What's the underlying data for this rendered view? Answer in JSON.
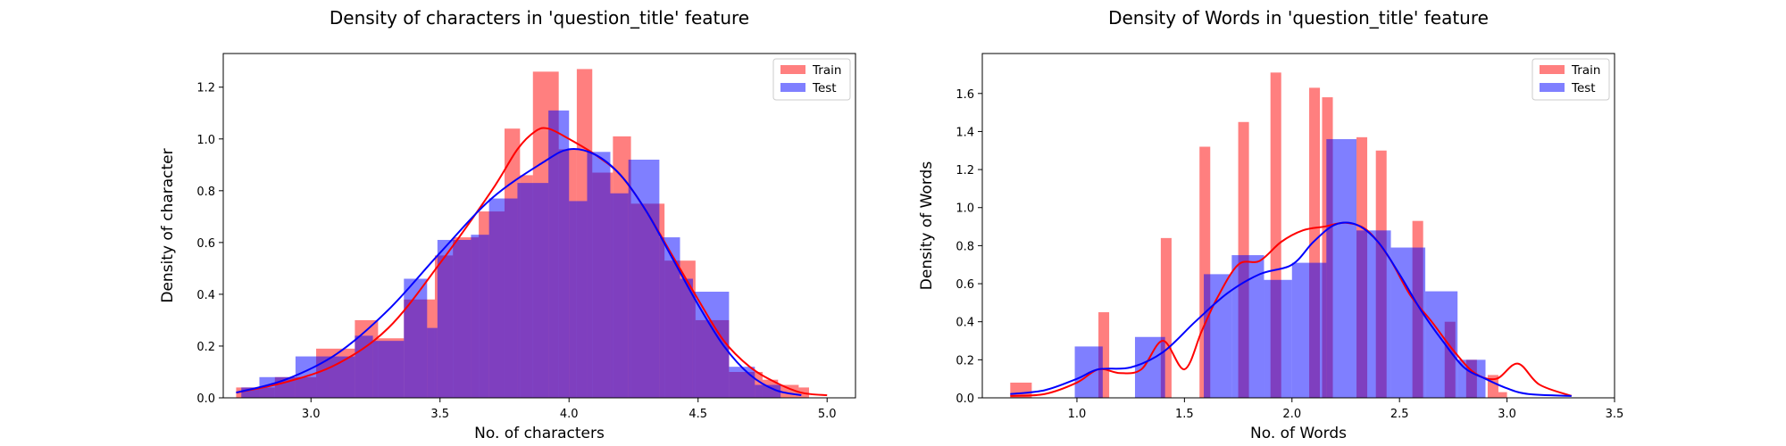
{
  "chart_data": [
    {
      "type": "histogram",
      "title": "Density of characters in 'question_title' feature",
      "xlabel": "No. of characters",
      "ylabel": "Density of character",
      "xlim": [
        2.66,
        5.11
      ],
      "ylim": [
        0,
        1.33
      ],
      "xticks": [
        3.0,
        3.5,
        4.0,
        4.5,
        5.0
      ],
      "xtick_labels": [
        "3.0",
        "3.5",
        "4.0",
        "4.5",
        "5.0"
      ],
      "yticks": [
        0.0,
        0.2,
        0.4,
        0.6,
        0.8,
        1.0,
        1.2
      ],
      "ytick_labels": [
        "0.0",
        "0.2",
        "0.4",
        "0.6",
        "0.8",
        "1.0",
        "1.2"
      ],
      "legend": {
        "position": "top-right",
        "entries": [
          "Train",
          "Test"
        ]
      },
      "grid": false,
      "series": [
        {
          "name": "Train",
          "color": "#ff0000",
          "bins": [
            [
              2.71,
              2.86,
              0.04
            ],
            [
              2.86,
              3.02,
              0.08
            ],
            [
              3.02,
              3.17,
              0.19
            ],
            [
              3.17,
              3.26,
              0.3
            ],
            [
              3.26,
              3.36,
              0.23
            ],
            [
              3.36,
              3.48,
              0.38
            ],
            [
              3.48,
              3.55,
              0.55
            ],
            [
              3.55,
              3.65,
              0.62
            ],
            [
              3.65,
              3.75,
              0.72
            ],
            [
              3.75,
              3.81,
              1.04
            ],
            [
              3.81,
              3.86,
              0.86
            ],
            [
              3.86,
              3.96,
              1.26
            ],
            [
              3.96,
              4.03,
              0.96
            ],
            [
              4.03,
              4.09,
              1.27
            ],
            [
              4.09,
              4.17,
              0.87
            ],
            [
              4.17,
              4.24,
              1.01
            ],
            [
              4.24,
              4.37,
              0.75
            ],
            [
              4.37,
              4.49,
              0.53
            ],
            [
              4.49,
              4.62,
              0.3
            ],
            [
              4.62,
              4.75,
              0.1
            ],
            [
              4.75,
              4.81,
              0.07
            ],
            [
              4.81,
              4.89,
              0.05
            ],
            [
              4.89,
              4.93,
              0.04
            ]
          ],
          "kde": [
            [
              2.71,
              0.02
            ],
            [
              2.9,
              0.06
            ],
            [
              3.1,
              0.13
            ],
            [
              3.3,
              0.27
            ],
            [
              3.5,
              0.52
            ],
            [
              3.7,
              0.8
            ],
            [
              3.8,
              0.96
            ],
            [
              3.87,
              1.03
            ],
            [
              3.92,
              1.04
            ],
            [
              4.0,
              1.0
            ],
            [
              4.1,
              0.94
            ],
            [
              4.2,
              0.86
            ],
            [
              4.3,
              0.72
            ],
            [
              4.4,
              0.55
            ],
            [
              4.5,
              0.38
            ],
            [
              4.6,
              0.22
            ],
            [
              4.7,
              0.12
            ],
            [
              4.8,
              0.06
            ],
            [
              4.9,
              0.02
            ],
            [
              5.0,
              0.01
            ]
          ]
        },
        {
          "name": "Test",
          "color": "#0000ff",
          "bins": [
            [
              2.73,
              2.8,
              0.04
            ],
            [
              2.8,
              2.94,
              0.08
            ],
            [
              2.94,
              3.07,
              0.16
            ],
            [
              3.07,
              3.17,
              0.16
            ],
            [
              3.17,
              3.24,
              0.24
            ],
            [
              3.24,
              3.36,
              0.22
            ],
            [
              3.36,
              3.45,
              0.46
            ],
            [
              3.45,
              3.49,
              0.27
            ],
            [
              3.49,
              3.62,
              0.61
            ],
            [
              3.62,
              3.69,
              0.63
            ],
            [
              3.69,
              3.8,
              0.77
            ],
            [
              3.8,
              3.92,
              0.83
            ],
            [
              3.92,
              4.0,
              1.11
            ],
            [
              4.0,
              4.07,
              0.76
            ],
            [
              4.07,
              4.16,
              0.95
            ],
            [
              4.16,
              4.23,
              0.79
            ],
            [
              4.23,
              4.35,
              0.92
            ],
            [
              4.35,
              4.43,
              0.62
            ],
            [
              4.43,
              4.48,
              0.46
            ],
            [
              4.48,
              4.62,
              0.41
            ],
            [
              4.62,
              4.72,
              0.12
            ],
            [
              4.72,
              4.82,
              0.05
            ]
          ],
          "kde": [
            [
              2.71,
              0.02
            ],
            [
              2.9,
              0.07
            ],
            [
              3.1,
              0.17
            ],
            [
              3.3,
              0.34
            ],
            [
              3.5,
              0.56
            ],
            [
              3.7,
              0.77
            ],
            [
              3.9,
              0.91
            ],
            [
              4.0,
              0.96
            ],
            [
              4.1,
              0.94
            ],
            [
              4.2,
              0.86
            ],
            [
              4.3,
              0.72
            ],
            [
              4.4,
              0.54
            ],
            [
              4.5,
              0.36
            ],
            [
              4.6,
              0.2
            ],
            [
              4.7,
              0.09
            ],
            [
              4.8,
              0.03
            ],
            [
              4.9,
              0.01
            ]
          ]
        }
      ]
    },
    {
      "type": "histogram",
      "title": "Density of Words in 'question_title' feature",
      "xlabel": "No. of Words",
      "ylabel": "Density of Words",
      "xlim": [
        0.56,
        3.5
      ],
      "ylim": [
        0,
        1.81
      ],
      "xticks": [
        1.0,
        1.5,
        2.0,
        2.5,
        3.0,
        3.5
      ],
      "xtick_labels": [
        "1.0",
        "1.5",
        "2.0",
        "2.5",
        "3.0",
        "3.5"
      ],
      "yticks": [
        0.0,
        0.2,
        0.4,
        0.6,
        0.8,
        1.0,
        1.2,
        1.4,
        1.6
      ],
      "ytick_labels": [
        "0.0",
        "0.2",
        "0.4",
        "0.6",
        "0.8",
        "1.0",
        "1.2",
        "1.4",
        "1.6"
      ],
      "legend": {
        "position": "top-right",
        "entries": [
          "Train",
          "Test"
        ]
      },
      "grid": false,
      "series": [
        {
          "name": "Train",
          "color": "#ff0000",
          "bins": [
            [
              0.69,
              0.79,
              0.08
            ],
            [
              1.1,
              1.15,
              0.45
            ],
            [
              1.39,
              1.44,
              0.84
            ],
            [
              1.57,
              1.62,
              1.32
            ],
            [
              1.75,
              1.8,
              1.45
            ],
            [
              1.9,
              1.95,
              1.71
            ],
            [
              2.08,
              2.13,
              1.63
            ],
            [
              2.14,
              2.19,
              1.58
            ],
            [
              2.3,
              2.35,
              1.37
            ],
            [
              2.39,
              2.44,
              1.3
            ],
            [
              2.56,
              2.61,
              0.93
            ],
            [
              2.71,
              2.76,
              0.4
            ],
            [
              2.81,
              2.86,
              0.2
            ],
            [
              2.91,
              2.96,
              0.12
            ],
            [
              2.96,
              3.0,
              0.03
            ]
          ],
          "kde": [
            [
              0.69,
              0.01
            ],
            [
              0.85,
              0.02
            ],
            [
              1.0,
              0.08
            ],
            [
              1.1,
              0.15
            ],
            [
              1.2,
              0.13
            ],
            [
              1.3,
              0.15
            ],
            [
              1.4,
              0.3
            ],
            [
              1.5,
              0.15
            ],
            [
              1.58,
              0.35
            ],
            [
              1.65,
              0.52
            ],
            [
              1.75,
              0.7
            ],
            [
              1.85,
              0.72
            ],
            [
              1.95,
              0.82
            ],
            [
              2.05,
              0.88
            ],
            [
              2.15,
              0.9
            ],
            [
              2.25,
              0.92
            ],
            [
              2.35,
              0.88
            ],
            [
              2.45,
              0.74
            ],
            [
              2.55,
              0.54
            ],
            [
              2.65,
              0.4
            ],
            [
              2.75,
              0.25
            ],
            [
              2.85,
              0.13
            ],
            [
              2.95,
              0.1
            ],
            [
              3.05,
              0.18
            ],
            [
              3.15,
              0.07
            ],
            [
              3.3,
              0.01
            ]
          ]
        },
        {
          "name": "Test",
          "color": "#0000ff",
          "bins": [
            [
              0.99,
              1.12,
              0.27
            ],
            [
              1.27,
              1.41,
              0.32
            ],
            [
              1.59,
              1.72,
              0.65
            ],
            [
              1.72,
              1.87,
              0.75
            ],
            [
              1.87,
              2.0,
              0.62
            ],
            [
              2.0,
              2.16,
              0.71
            ],
            [
              2.16,
              2.3,
              1.36
            ],
            [
              2.3,
              2.46,
              0.88
            ],
            [
              2.46,
              2.62,
              0.79
            ],
            [
              2.62,
              2.77,
              0.56
            ],
            [
              2.77,
              2.9,
              0.2
            ]
          ],
          "kde": [
            [
              0.69,
              0.02
            ],
            [
              0.85,
              0.04
            ],
            [
              1.0,
              0.1
            ],
            [
              1.1,
              0.15
            ],
            [
              1.25,
              0.16
            ],
            [
              1.4,
              0.24
            ],
            [
              1.55,
              0.4
            ],
            [
              1.7,
              0.55
            ],
            [
              1.85,
              0.65
            ],
            [
              2.0,
              0.7
            ],
            [
              2.1,
              0.82
            ],
            [
              2.2,
              0.91
            ],
            [
              2.3,
              0.91
            ],
            [
              2.4,
              0.82
            ],
            [
              2.5,
              0.65
            ],
            [
              2.6,
              0.46
            ],
            [
              2.7,
              0.3
            ],
            [
              2.8,
              0.16
            ],
            [
              2.9,
              0.1
            ],
            [
              3.0,
              0.05
            ],
            [
              3.1,
              0.02
            ],
            [
              3.3,
              0.01
            ]
          ]
        }
      ]
    }
  ]
}
